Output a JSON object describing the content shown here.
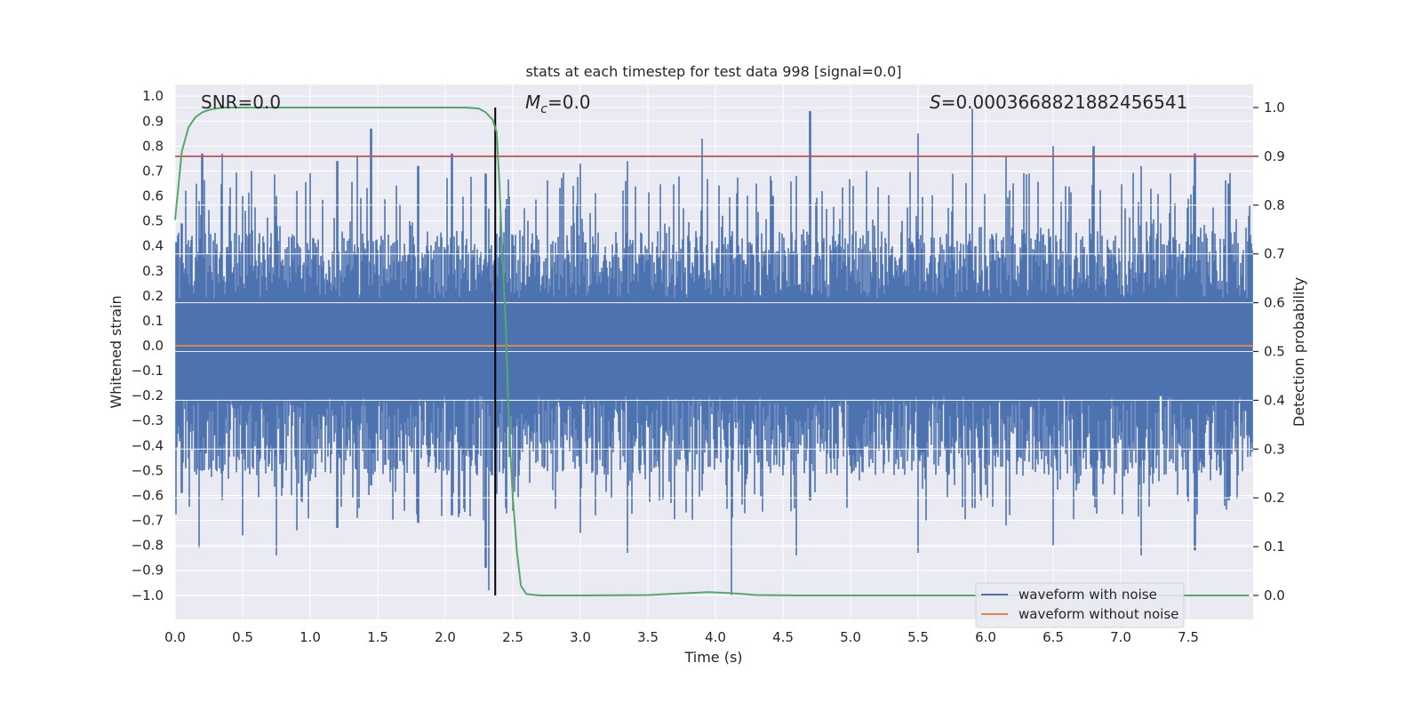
{
  "chart_data": {
    "type": "line",
    "title": "stats at each timestep for test data 998 [signal=0.0]",
    "xlabel": "Time (s)",
    "ylabel": "Whitened strain",
    "y2label": "Detection probability",
    "xlim": [
      0.0,
      8.0
    ],
    "ylim": [
      -1.1,
      1.1
    ],
    "y2lim": [
      -0.05,
      1.05
    ],
    "xticks": [
      "0.0",
      "0.5",
      "1.0",
      "1.5",
      "2.0",
      "2.5",
      "3.0",
      "3.5",
      "4.0",
      "4.5",
      "5.0",
      "5.5",
      "6.0",
      "6.5",
      "7.0",
      "7.5"
    ],
    "yticks": [
      "1.0",
      "0.9",
      "0.8",
      "0.7",
      "0.6",
      "0.5",
      "0.4",
      "0.3",
      "0.2",
      "0.1",
      "0.0",
      "−0.1",
      "−0.2",
      "−0.3",
      "−0.4",
      "−0.5",
      "−0.6",
      "−0.7",
      "−0.8",
      "−0.9",
      "−1.0"
    ],
    "y2ticks": [
      "1.0",
      "0.9",
      "0.8",
      "0.7",
      "0.6",
      "0.5",
      "0.4",
      "0.3",
      "0.2",
      "0.1",
      "0.0"
    ],
    "grid": true,
    "legend_position": "lower-right",
    "annotations": {
      "snr": "SNR=0.0",
      "mc_symbol": "M",
      "mc_sub": "c",
      "mc_value": "=0.0",
      "s_symbol": "S",
      "s_value": "=0.0003668821882456541"
    },
    "vertical_line_x": 2.37,
    "threshold_y2": 0.9,
    "series": [
      {
        "name": "waveform with noise",
        "color": "#4c72b0",
        "axis": "left",
        "peaks": [
          [
            0.05,
            0.49,
            -0.59
          ],
          [
            0.18,
            0.58,
            -0.81
          ],
          [
            0.2,
            0.77,
            -0.5
          ],
          [
            0.35,
            0.77,
            -0.62
          ],
          [
            0.5,
            0.6,
            -0.76
          ],
          [
            0.75,
            0.6,
            -0.84
          ],
          [
            0.9,
            0.62,
            -0.74
          ],
          [
            1.2,
            0.74,
            -0.73
          ],
          [
            1.35,
            0.76,
            -0.69
          ],
          [
            1.45,
            0.87,
            -0.56
          ],
          [
            1.8,
            0.72,
            -0.71
          ],
          [
            2.05,
            0.77,
            -0.68
          ],
          [
            2.3,
            0.69,
            -0.89
          ],
          [
            2.32,
            0.55,
            -0.98
          ],
          [
            2.45,
            0.55,
            -0.65
          ],
          [
            3.0,
            0.73,
            -0.75
          ],
          [
            3.35,
            0.74,
            -0.83
          ],
          [
            3.9,
            0.83,
            -0.58
          ],
          [
            4.12,
            0.4,
            -1.0
          ],
          [
            4.6,
            0.68,
            -0.84
          ],
          [
            4.7,
            0.94,
            -0.62
          ],
          [
            5.5,
            0.85,
            -0.83
          ],
          [
            5.9,
            0.95,
            -0.65
          ],
          [
            6.15,
            0.76,
            -0.72
          ],
          [
            6.5,
            0.8,
            -0.8
          ],
          [
            6.8,
            0.8,
            -0.6
          ],
          [
            7.15,
            0.72,
            -0.84
          ],
          [
            7.55,
            0.77,
            -0.82
          ],
          [
            7.8,
            0.65,
            -0.62
          ]
        ],
        "band_typical": [
          0.32,
          -0.37
        ]
      },
      {
        "name": "waveform without noise",
        "color": "#dd8452",
        "axis": "left",
        "values": [
          0.0
        ]
      },
      {
        "name": "",
        "color": "#55a868",
        "axis": "right",
        "x": [
          0.0,
          0.05,
          0.1,
          0.15,
          0.2,
          0.25,
          0.3,
          0.35,
          0.4,
          0.6,
          1.0,
          1.5,
          2.0,
          2.15,
          2.25,
          2.3,
          2.35,
          2.38,
          2.4,
          2.42,
          2.45,
          2.47,
          2.5,
          2.53,
          2.56,
          2.6,
          2.7,
          3.0,
          3.5,
          3.95,
          4.1,
          4.3,
          4.6,
          5.0,
          6.0,
          7.0,
          7.95
        ],
        "values": [
          0.77,
          0.91,
          0.96,
          0.98,
          0.99,
          0.995,
          0.998,
          1.0,
          1.0,
          1.0,
          1.0,
          1.0,
          1.0,
          1.0,
          0.998,
          0.99,
          0.975,
          0.95,
          0.85,
          0.72,
          0.54,
          0.36,
          0.2,
          0.09,
          0.02,
          0.003,
          0.0,
          0.0,
          0.001,
          0.007,
          0.005,
          0.001,
          0.0,
          0.0,
          0.0,
          0.0,
          0.0
        ]
      },
      {
        "name": "",
        "color": "#c44e52",
        "axis": "right",
        "values": [
          0.9
        ]
      }
    ]
  }
}
